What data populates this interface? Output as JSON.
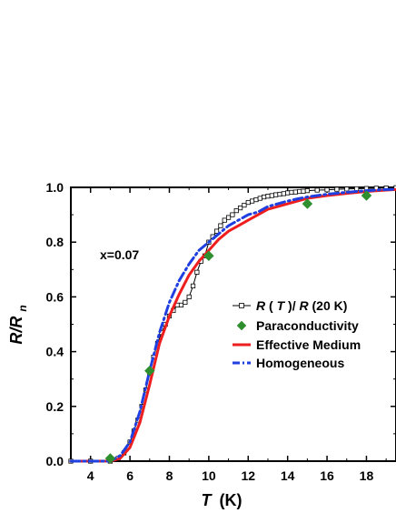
{
  "chart_data": {
    "type": "line",
    "title": "",
    "xlabel": {
      "main": "T",
      "unit": "(K)"
    },
    "ylabel": {
      "main": "R/R",
      "subscript": "n"
    },
    "xlim": [
      3,
      19.5
    ],
    "ylim": [
      0,
      1.0
    ],
    "xticks": [
      4,
      6,
      8,
      10,
      12,
      14,
      16,
      18
    ],
    "yticks": [
      0.0,
      0.2,
      0.4,
      0.6,
      0.8,
      1.0
    ],
    "xtick_labels": [
      "4",
      "6",
      "8",
      "10",
      "12",
      "14",
      "16",
      "18"
    ],
    "ytick_labels": [
      "0.0",
      "0.2",
      "0.4",
      "0.6",
      "0.8",
      "1.0"
    ],
    "grid": false,
    "legend_position": "right-middle",
    "annotation": "x=0.07",
    "series": [
      {
        "name": "R(T)/R(20 K)",
        "legend": {
          "part1": "R",
          "part2": "(",
          "part3": "T",
          "part4": ")/",
          "part5": "R",
          "part6": "(20 K)"
        },
        "color": "#000000",
        "style": "line-square-marker",
        "x": [
          3.0,
          4.0,
          5.0,
          5.4,
          5.7,
          6.0,
          6.2,
          6.4,
          6.6,
          6.8,
          7.0,
          7.2,
          7.4,
          7.6,
          7.8,
          8.0,
          8.2,
          8.4,
          8.6,
          8.8,
          9.0,
          9.2,
          9.4,
          9.6,
          9.8,
          10.0,
          10.2,
          10.4,
          10.6,
          10.8,
          11.0,
          11.2,
          11.4,
          11.6,
          11.8,
          12.0,
          12.2,
          12.4,
          12.6,
          12.8,
          13.0,
          13.2,
          13.4,
          13.6,
          13.8,
          14.0,
          14.2,
          14.4,
          14.6,
          14.8,
          15.0,
          15.5,
          16.0,
          16.5,
          17.0,
          17.5,
          18.0,
          18.5,
          19.0,
          19.5
        ],
        "y": [
          0.0,
          0.0,
          0.0,
          0.01,
          0.03,
          0.07,
          0.11,
          0.15,
          0.2,
          0.26,
          0.32,
          0.38,
          0.43,
          0.47,
          0.5,
          0.53,
          0.55,
          0.57,
          0.57,
          0.58,
          0.6,
          0.64,
          0.69,
          0.73,
          0.75,
          0.8,
          0.82,
          0.84,
          0.86,
          0.88,
          0.89,
          0.9,
          0.915,
          0.925,
          0.935,
          0.945,
          0.95,
          0.955,
          0.96,
          0.965,
          0.968,
          0.97,
          0.973,
          0.975,
          0.977,
          0.98,
          0.982,
          0.983,
          0.985,
          0.986,
          0.988,
          0.99,
          0.991,
          0.993,
          0.994,
          0.995,
          0.996,
          0.997,
          0.998,
          0.999
        ]
      },
      {
        "name": "Paraconductivity",
        "color": "#2f8f2f",
        "style": "diamond-scatter",
        "x": [
          5.0,
          7.0,
          10.0,
          15.0,
          18.0
        ],
        "y": [
          0.01,
          0.33,
          0.75,
          0.94,
          0.97
        ]
      },
      {
        "name": "Effective Medium",
        "color": "#ef1e1e",
        "style": "solid-line",
        "x": [
          3.0,
          4.0,
          5.0,
          5.5,
          6.0,
          6.5,
          7.0,
          7.5,
          8.0,
          8.5,
          9.0,
          9.5,
          10.0,
          10.5,
          11.0,
          11.5,
          12.0,
          12.5,
          13.0,
          13.5,
          14.0,
          14.5,
          15.0,
          15.5,
          16.0,
          17.0,
          18.0,
          19.0,
          19.5
        ],
        "y": [
          0.0,
          0.0,
          0.0,
          0.01,
          0.05,
          0.14,
          0.28,
          0.43,
          0.53,
          0.61,
          0.68,
          0.73,
          0.77,
          0.81,
          0.84,
          0.86,
          0.88,
          0.9,
          0.92,
          0.93,
          0.94,
          0.95,
          0.96,
          0.965,
          0.97,
          0.978,
          0.985,
          0.99,
          0.992
        ]
      },
      {
        "name": "Homogeneous",
        "color": "#1f3fe0",
        "style": "dash-dot-line",
        "x": [
          3.0,
          4.0,
          5.0,
          5.5,
          6.0,
          6.5,
          7.0,
          7.5,
          8.0,
          8.5,
          9.0,
          9.5,
          10.0,
          10.5,
          11.0,
          11.5,
          12.0,
          12.5,
          13.0,
          13.5,
          14.0,
          14.5,
          15.0,
          15.5,
          16.0,
          17.0,
          18.0,
          19.0,
          19.5
        ],
        "y": [
          0.0,
          0.0,
          0.0,
          0.02,
          0.07,
          0.18,
          0.33,
          0.47,
          0.58,
          0.66,
          0.72,
          0.77,
          0.8,
          0.83,
          0.86,
          0.88,
          0.9,
          0.91,
          0.93,
          0.94,
          0.95,
          0.958,
          0.965,
          0.97,
          0.975,
          0.982,
          0.988,
          0.992,
          0.993
        ]
      }
    ]
  }
}
